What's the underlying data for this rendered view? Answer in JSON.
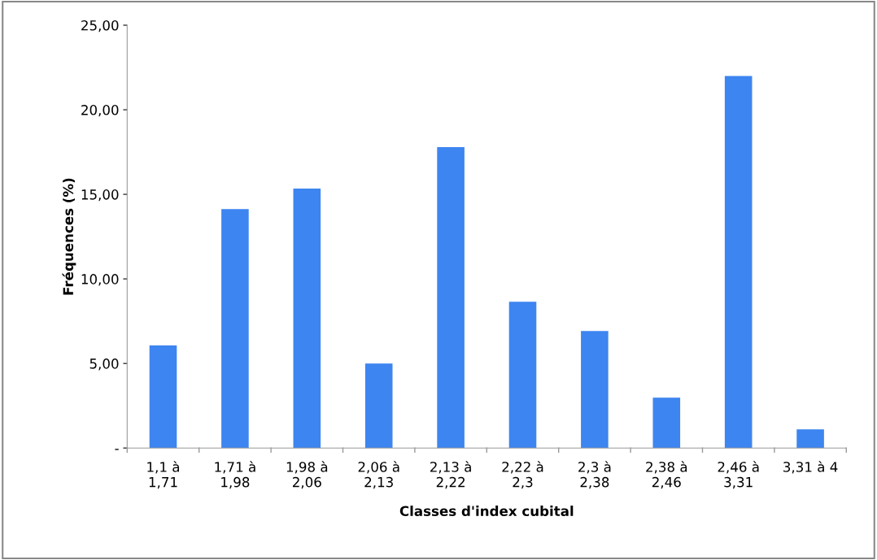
{
  "chart_data": {
    "type": "bar",
    "xlabel": "Classes d'index cubital",
    "ylabel": "Fréquences (%)",
    "categories": [
      "1,1 à\n1,71",
      "1,71 à\n1,98",
      "1,98 à\n2,06",
      "2,06 à\n2,13",
      "2,13 à\n2,22",
      "2,22 à\n2,3",
      "2,3 à\n2,38",
      "2,38 à\n2,46",
      "2,46 à\n3,31",
      "3,31 à 4"
    ],
    "values": [
      6.06,
      14.13,
      15.34,
      5.0,
      17.79,
      8.65,
      6.92,
      2.98,
      22.0,
      1.1
    ],
    "color": "#3d85f0",
    "ylim": [
      0,
      25
    ],
    "yticks": [
      {
        "value": 0,
        "label": "-"
      },
      {
        "value": 5,
        "label": "5,00"
      },
      {
        "value": 10,
        "label": "10,00"
      },
      {
        "value": 15,
        "label": "15,00"
      },
      {
        "value": 20,
        "label": "20,00"
      },
      {
        "value": 25,
        "label": "25,00"
      }
    ],
    "grid": false,
    "legend": false
  }
}
